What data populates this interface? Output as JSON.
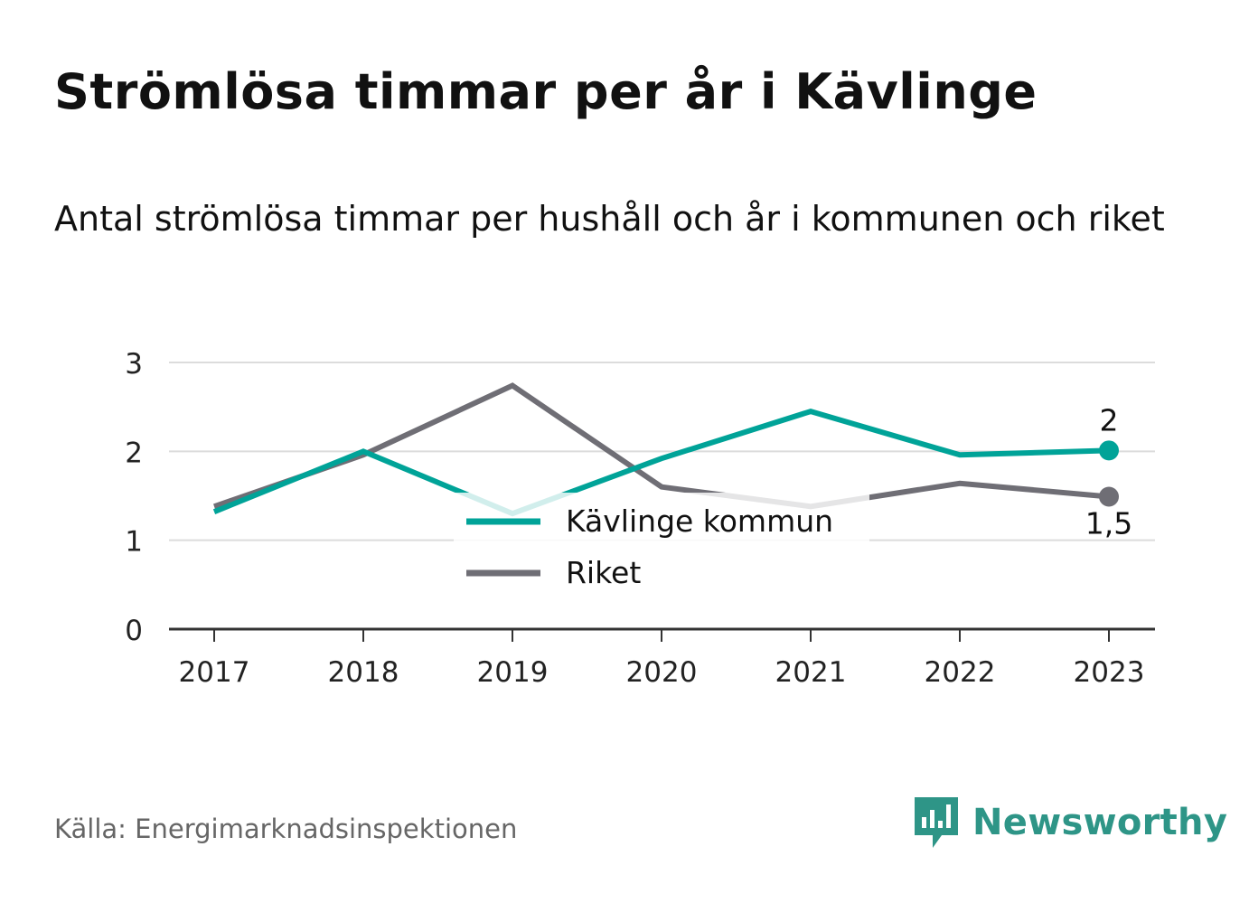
{
  "title": "Strömlösa timmar per år i Kävlinge",
  "subtitle": "Antal strömlösa timmar per hushåll och år i kommunen och riket",
  "source": "Källa: Energimarknadsinspektionen",
  "brand": {
    "name": "Newsworthy",
    "icon": "newsworthy-logo-icon",
    "color": "#2e9587"
  },
  "chart_data": {
    "type": "line",
    "x": [
      "2017",
      "2018",
      "2019",
      "2020",
      "2021",
      "2022",
      "2023"
    ],
    "y_ticks": [
      "0",
      "1",
      "2",
      "3"
    ],
    "ylim": [
      0,
      3
    ],
    "grid": true,
    "legend_position": "center",
    "series": [
      {
        "name": "Kävlinge kommun",
        "color": "#00a398",
        "values": [
          1.32,
          2.0,
          1.3,
          1.92,
          2.45,
          1.96,
          2.01
        ],
        "end_label": "2"
      },
      {
        "name": "Riket",
        "color": "#6f6e75",
        "values": [
          1.38,
          1.96,
          2.74,
          1.6,
          1.38,
          1.64,
          1.49
        ],
        "end_label": "1,5"
      }
    ]
  }
}
